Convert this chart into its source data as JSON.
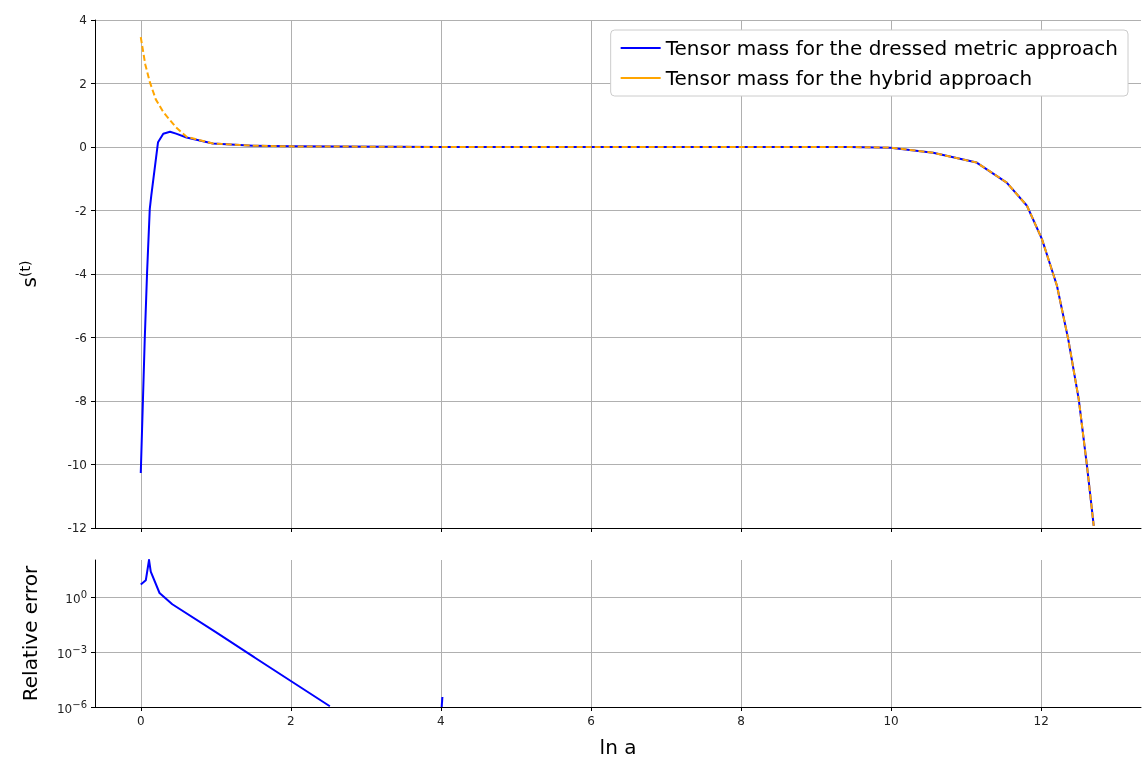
{
  "chart_data": [
    {
      "type": "line",
      "ylabel": "s$^{(t)}$",
      "xlim": [
        -0.61,
        13.33
      ],
      "ylim": [
        -12,
        4
      ],
      "xticks": [
        0,
        2,
        4,
        6,
        8,
        10,
        12
      ],
      "yticks": [
        -12,
        -10,
        -8,
        -6,
        -4,
        -2,
        0,
        2,
        4
      ],
      "grid": true,
      "legend": "top right",
      "marker": "none",
      "tick_labels": "y",
      "series": [
        {
          "name": "Tensor mass for the dressed metric approach",
          "color": "#0000ff",
          "line_style": "solid",
          "x": [
            0,
            0.053,
            0.084,
            0.12,
            0.14,
            0.23,
            0.3,
            0.39,
            0.47,
            0.61,
            0.96,
            1.5,
            2,
            4,
            6,
            8,
            9,
            9.45,
            9.99,
            10.56,
            11.14,
            11.54,
            11.81,
            12.01,
            12.21,
            12.36,
            12.5,
            12.61,
            12.7
          ],
          "values": [
            -10.27,
            -6.05,
            -3.95,
            -1.95,
            -1.53,
            0.15,
            0.42,
            0.48,
            0.42,
            0.3,
            0.11,
            0.04,
            0.02,
            0,
            0,
            0,
            0,
            0,
            -0.02,
            -0.18,
            -0.49,
            -1.12,
            -1.85,
            -2.9,
            -4.37,
            -6.05,
            -7.94,
            -10.04,
            -11.93
          ]
        },
        {
          "name": "Tensor mass for the hybrid approach",
          "color": "#ffa500",
          "line_style": "dashed",
          "x": [
            0,
            0.06,
            0.12,
            0.2,
            0.3,
            0.47,
            0.61,
            0.96,
            1.5,
            2,
            4,
            6,
            8,
            9,
            9.45,
            9.99,
            10.56,
            11.14,
            11.54,
            11.81,
            12.01,
            12.21,
            12.36,
            12.5,
            12.61,
            12.7
          ],
          "values": [
            3.46,
            2.6,
            2.05,
            1.5,
            1.1,
            0.62,
            0.32,
            0.11,
            0.04,
            0.02,
            0,
            0,
            0,
            0,
            0,
            -0.02,
            -0.18,
            -0.49,
            -1.12,
            -1.85,
            -2.9,
            -4.37,
            -6.05,
            -7.94,
            -10.04,
            -11.93
          ]
        }
      ]
    },
    {
      "type": "line",
      "xlabel": "ln a",
      "ylabel": "Relative error",
      "log": "y",
      "xlim": [
        -0.61,
        13.33
      ],
      "ylim": [
        1e-06,
        100
      ],
      "xticks": [
        0,
        2,
        4,
        6,
        8,
        10,
        12
      ],
      "yticks": [
        {
          "value": 1e-06,
          "label": "10$^{−6}$"
        },
        {
          "value": 0.001,
          "label": "10$^{−3}$"
        },
        {
          "value": 1,
          "label": "10$^{0}$"
        }
      ],
      "grid": true,
      "marker": "none",
      "series": [
        {
          "color": "#0000ff",
          "x": [
            0,
            0.067,
            0.11,
            0.133,
            0.25,
            0.42,
            1,
            1.5,
            2,
            2.52
          ],
          "values": [
            4.6,
            7.8,
            100,
            23,
            1.6,
            0.39,
            0.012,
            0.00055,
            2.6e-05,
            1.1e-06
          ]
        },
        {
          "color": "#0000ff",
          "x": [
            4.01,
            4.02
          ],
          "values": [
            1e-06,
            3.5e-06
          ]
        }
      ]
    }
  ]
}
